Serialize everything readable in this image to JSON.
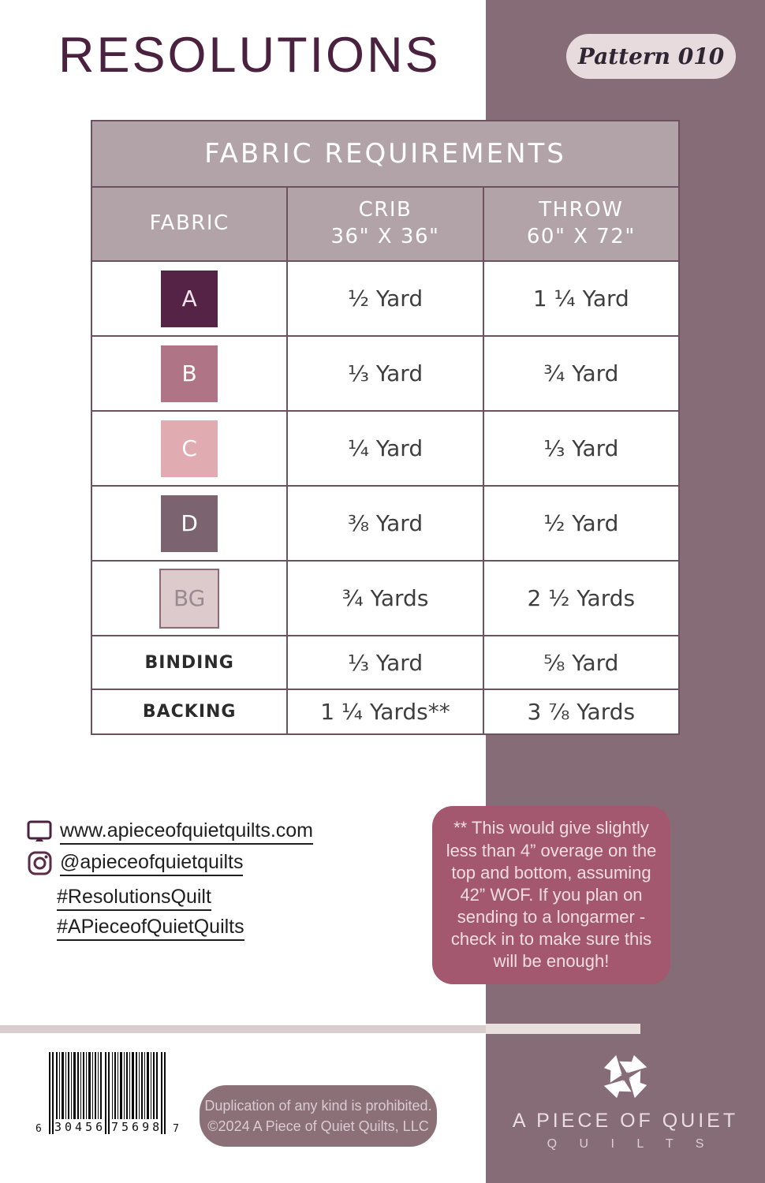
{
  "header": {
    "title": "RESOLUTIONS",
    "badge": "Pattern 010"
  },
  "table": {
    "title": "FABRIC REQUIREMENTS",
    "columns": [
      {
        "label": "FABRIC",
        "sub": ""
      },
      {
        "label": "CRIB",
        "sub": "36\" X 36\""
      },
      {
        "label": "THROW",
        "sub": "60\" X 72\""
      }
    ],
    "rows": [
      {
        "label": "A",
        "swatch": "#552345",
        "label_color": "#f0e4ea",
        "crib": "½ Yard",
        "throw": "1 ¼ Yard"
      },
      {
        "label": "B",
        "swatch": "#b07487",
        "label_color": "#ffffff",
        "crib": "⅓ Yard",
        "throw": "¾ Yard"
      },
      {
        "label": "C",
        "swatch": "#e0acb2",
        "label_color": "#ffffff",
        "crib": "¼ Yard",
        "throw": "⅓ Yard"
      },
      {
        "label": "D",
        "swatch": "#7c6370",
        "label_color": "#ffffff",
        "crib": "⅜ Yard",
        "throw": "½ Yard"
      },
      {
        "label": "BG",
        "swatch": "#ddcacd",
        "swatch_border": "#8d6a77",
        "label_color": "#998a91",
        "crib": "¾ Yards",
        "throw": "2 ½ Yards"
      },
      {
        "label": "BINDING",
        "crib": "⅓ Yard",
        "throw": "⅝ Yard"
      },
      {
        "label": "BACKING",
        "crib": "1 ¼ Yards**",
        "throw": "3 ⅞ Yards"
      }
    ]
  },
  "links": {
    "website": "www.apieceofquietquilts.com",
    "instagram": "@apieceofquietquilts",
    "hashtags": [
      "#ResolutionsQuilt",
      "#APieceofQuietQuilts"
    ]
  },
  "note": "** This would give slightly less than 4” overage on the top and bottom, assuming 42” WOF. If you plan on sending to a longarmer - check in to make sure this will be enough!",
  "barcode": {
    "prefix": "6",
    "group1": "30456",
    "group2": "75698",
    "suffix": "7"
  },
  "copyright": {
    "line1": "Duplication of any kind is prohibited.",
    "line2": "©2024 A Piece of Quiet Quilts, LLC"
  },
  "brand": {
    "name": "A PIECE OF QUIET",
    "sub": "Q U I L T S"
  },
  "colors": {
    "accent_plum": "#4a2240",
    "column_mauve": "#866c76",
    "table_header_bg": "#b2a3a9",
    "table_border": "#6b525c",
    "note_bg": "#a3586f",
    "note_text": "#f0dde3",
    "badge_bg": "#e7dbdd",
    "pill_bg": "#8b7078",
    "stripe": "#d9cecd"
  }
}
